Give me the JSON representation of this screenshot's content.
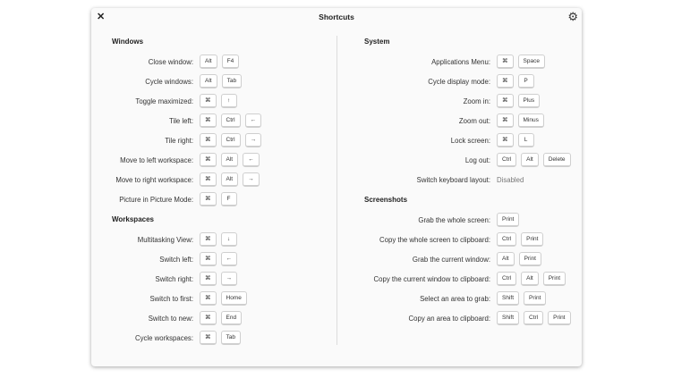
{
  "window": {
    "title": "Shortcuts",
    "close_icon": "close-icon",
    "settings_icon": "gear-icon"
  },
  "columns": [
    {
      "sections": [
        {
          "title": "Windows",
          "rows": [
            {
              "label": "Close window:",
              "keys": [
                "Alt",
                "F4"
              ]
            },
            {
              "label": "Cycle windows:",
              "keys": [
                "Alt",
                "Tab"
              ]
            },
            {
              "label": "Toggle maximized:",
              "keys": [
                "⌘",
                "↑"
              ]
            },
            {
              "label": "Tile left:",
              "keys": [
                "⌘",
                "Ctrl",
                "←"
              ]
            },
            {
              "label": "Tile right:",
              "keys": [
                "⌘",
                "Ctrl",
                "→"
              ]
            },
            {
              "label": "Move to left workspace:",
              "keys": [
                "⌘",
                "Alt",
                "←"
              ]
            },
            {
              "label": "Move to right workspace:",
              "keys": [
                "⌘",
                "Alt",
                "→"
              ]
            },
            {
              "label": "Picture in Picture Mode:",
              "keys": [
                "⌘",
                "F"
              ]
            }
          ]
        },
        {
          "title": "Workspaces",
          "rows": [
            {
              "label": "Multitasking View:",
              "keys": [
                "⌘",
                "↓"
              ]
            },
            {
              "label": "Switch left:",
              "keys": [
                "⌘",
                "←"
              ]
            },
            {
              "label": "Switch right:",
              "keys": [
                "⌘",
                "→"
              ]
            },
            {
              "label": "Switch to first:",
              "keys": [
                "⌘",
                "Home"
              ]
            },
            {
              "label": "Switch to new:",
              "keys": [
                "⌘",
                "End"
              ]
            },
            {
              "label": "Cycle workspaces:",
              "keys": [
                "⌘",
                "Tab"
              ]
            }
          ]
        }
      ]
    },
    {
      "sections": [
        {
          "title": "System",
          "rows": [
            {
              "label": "Applications Menu:",
              "keys": [
                "⌘",
                "Space"
              ]
            },
            {
              "label": "Cycle display mode:",
              "keys": [
                "⌘",
                "P"
              ]
            },
            {
              "label": "Zoom in:",
              "keys": [
                "⌘",
                "Plus"
              ]
            },
            {
              "label": "Zoom out:",
              "keys": [
                "⌘",
                "Minus"
              ]
            },
            {
              "label": "Lock screen:",
              "keys": [
                "⌘",
                "L"
              ]
            },
            {
              "label": "Log out:",
              "keys": [
                "Ctrl",
                "Alt",
                "Delete"
              ]
            },
            {
              "label": "Switch keyboard layout:",
              "value": "Disabled"
            }
          ]
        },
        {
          "title": "Screenshots",
          "rows": [
            {
              "label": "Grab the whole screen:",
              "keys": [
                "Print"
              ]
            },
            {
              "label": "Copy the whole screen to clipboard:",
              "keys": [
                "Ctrl",
                "Print"
              ]
            },
            {
              "label": "Grab the current window:",
              "keys": [
                "Alt",
                "Print"
              ]
            },
            {
              "label": "Copy the current window to clipboard:",
              "keys": [
                "Ctrl",
                "Alt",
                "Print"
              ]
            },
            {
              "label": "Select an area to grab:",
              "keys": [
                "Shift",
                "Print"
              ]
            },
            {
              "label": "Copy an area to clipboard:",
              "keys": [
                "Shift",
                "Ctrl",
                "Print"
              ]
            }
          ]
        }
      ]
    }
  ]
}
